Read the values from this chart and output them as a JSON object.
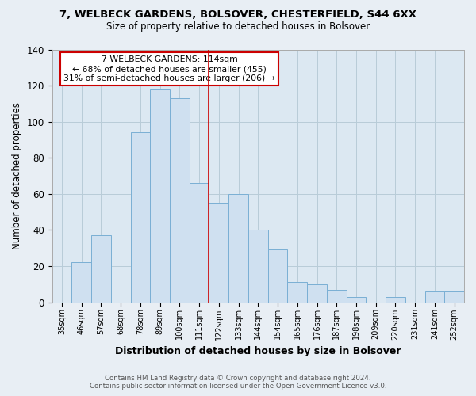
{
  "title": "7, WELBECK GARDENS, BOLSOVER, CHESTERFIELD, S44 6XX",
  "subtitle": "Size of property relative to detached houses in Bolsover",
  "xlabel": "Distribution of detached houses by size in Bolsover",
  "ylabel": "Number of detached properties",
  "bar_labels": [
    "35sqm",
    "46sqm",
    "57sqm",
    "68sqm",
    "78sqm",
    "89sqm",
    "100sqm",
    "111sqm",
    "122sqm",
    "133sqm",
    "144sqm",
    "154sqm",
    "165sqm",
    "176sqm",
    "187sqm",
    "198sqm",
    "209sqm",
    "220sqm",
    "231sqm",
    "241sqm",
    "252sqm"
  ],
  "bar_values": [
    0,
    22,
    37,
    0,
    94,
    118,
    113,
    66,
    55,
    60,
    40,
    29,
    11,
    10,
    7,
    3,
    0,
    3,
    0,
    6,
    6
  ],
  "bar_color": "#cfe0f0",
  "bar_edge_color": "#7aafd4",
  "vline_x": 7.5,
  "vline_color": "#cc0000",
  "annotation_text": "7 WELBECK GARDENS: 114sqm\n← 68% of detached houses are smaller (455)\n31% of semi-detached houses are larger (206) →",
  "annotation_box_facecolor": "#ffffff",
  "annotation_box_edgecolor": "#cc0000",
  "ylim": [
    0,
    140
  ],
  "yticks": [
    0,
    20,
    40,
    60,
    80,
    100,
    120,
    140
  ],
  "footer_line1": "Contains HM Land Registry data © Crown copyright and database right 2024.",
  "footer_line2": "Contains public sector information licensed under the Open Government Licence v3.0.",
  "fig_facecolor": "#e8eef4",
  "plot_facecolor": "#dce8f2",
  "grid_color": "#b8ccd8",
  "spine_color": "#aaaaaa"
}
